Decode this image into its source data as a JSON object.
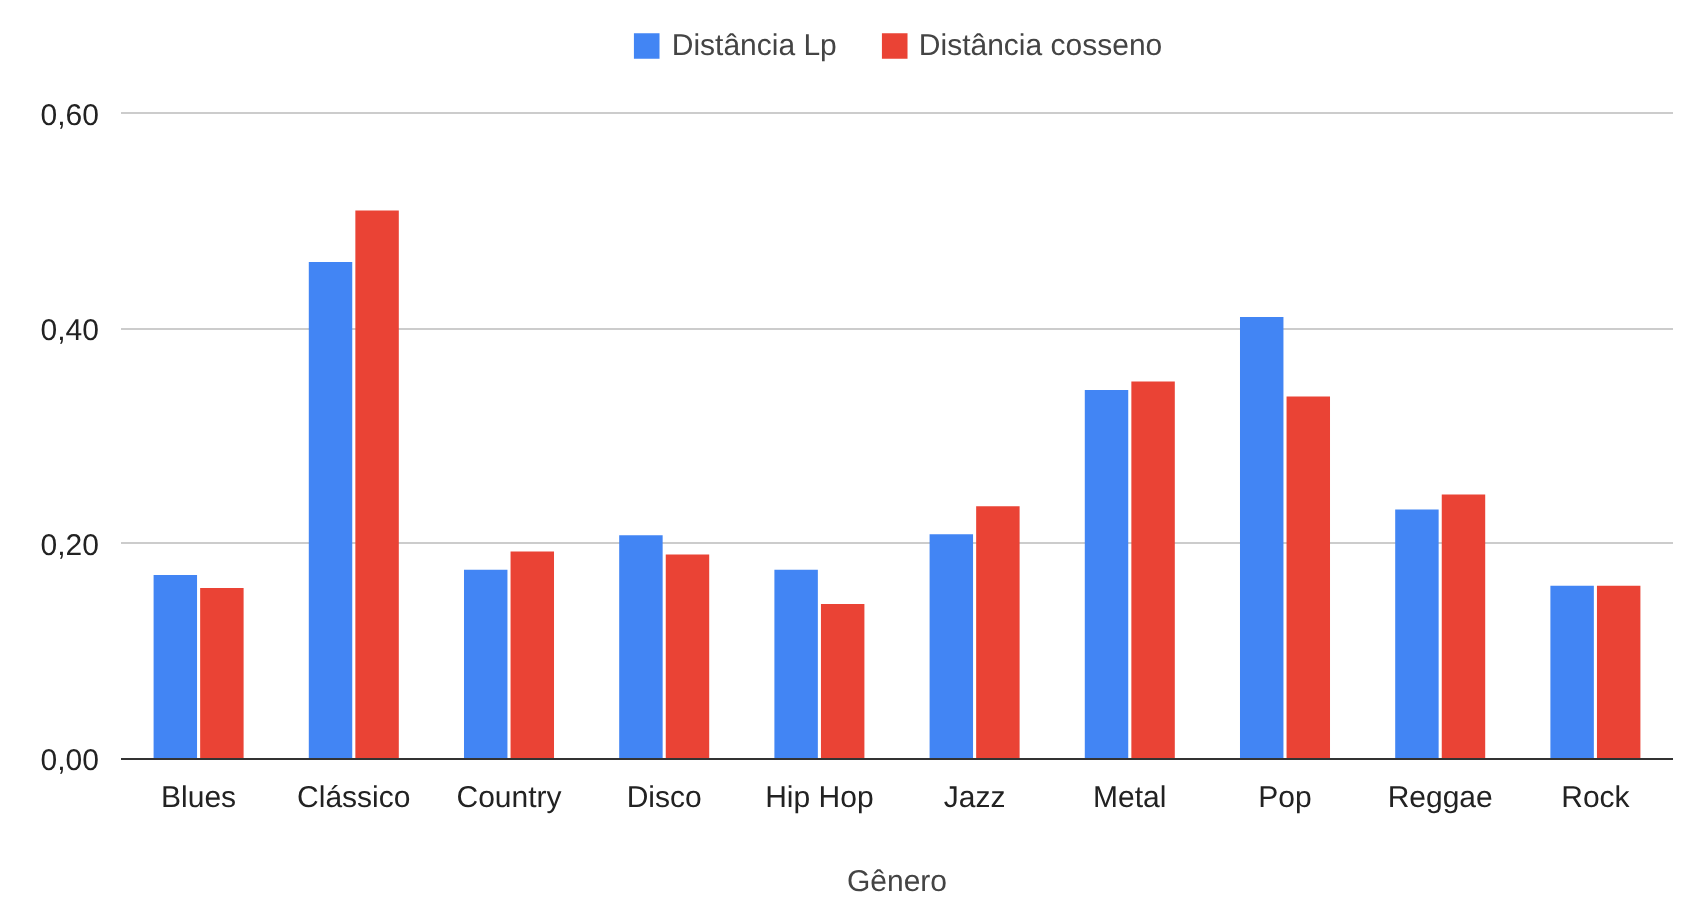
{
  "chart_data": {
    "type": "bar",
    "xlabel": "Gênero",
    "categories": [
      "Blues",
      "Clássico",
      "Country",
      "Disco",
      "Hip Hop",
      "Jazz",
      "Metal",
      "Pop",
      "Reggae",
      "Rock"
    ],
    "series": [
      {
        "name": "Distância Lp",
        "color": "#4285f4",
        "values": [
          0.171,
          0.462,
          0.176,
          0.208,
          0.176,
          0.209,
          0.343,
          0.411,
          0.232,
          0.161
        ]
      },
      {
        "name": "Distância cosseno",
        "color": "#ea4335",
        "values": [
          0.159,
          0.51,
          0.193,
          0.19,
          0.144,
          0.235,
          0.351,
          0.337,
          0.246,
          0.161
        ]
      }
    ],
    "ylim": [
      0,
      0.6
    ],
    "yticks": [
      {
        "value": 0,
        "label": "0,00"
      },
      {
        "value": 0.2,
        "label": "0,20"
      },
      {
        "value": 0.4,
        "label": "0,40"
      },
      {
        "value": 0.6,
        "label": "0,60"
      }
    ],
    "grid": "y",
    "legend": "top"
  }
}
